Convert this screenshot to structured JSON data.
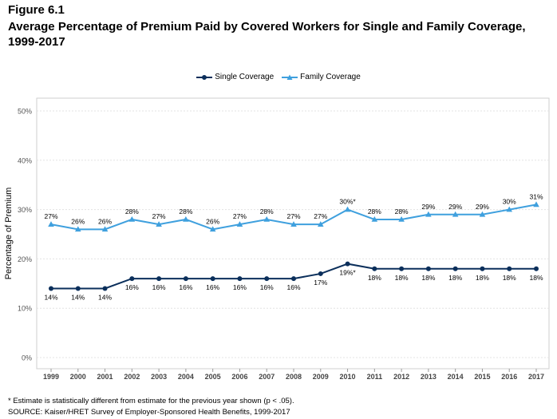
{
  "header": {
    "figure_label": "Figure 6.1",
    "title": "Average Percentage of Premium Paid by Covered Workers for Single and Family Coverage, 1999-2017"
  },
  "chart_data": {
    "type": "line",
    "x": [
      "1999",
      "2000",
      "2001",
      "2002",
      "2003",
      "2004",
      "2005",
      "2006",
      "2007",
      "2008",
      "2009",
      "2010",
      "2011",
      "2012",
      "2013",
      "2014",
      "2015",
      "2016",
      "2017"
    ],
    "ylabel": "Percentage of Premium",
    "ylim": [
      0,
      50
    ],
    "yticks": [
      0,
      10,
      20,
      30,
      40,
      50
    ],
    "ytick_labels": [
      "0%",
      "10%",
      "20%",
      "30%",
      "40%",
      "50%"
    ],
    "grid": "horizontal",
    "legend": "top-center",
    "series": [
      {
        "name": "Single Coverage",
        "color": "#0b2f5b",
        "marker": "circle",
        "values": [
          14,
          14,
          14,
          16,
          16,
          16,
          16,
          16,
          16,
          16,
          17,
          19,
          18,
          18,
          18,
          18,
          18,
          18,
          18
        ],
        "labels": [
          "14%",
          "14%",
          "14%",
          "16%",
          "16%",
          "16%",
          "16%",
          "16%",
          "16%",
          "16%",
          "17%",
          "19%*",
          "18%",
          "18%",
          "18%",
          "18%",
          "18%",
          "18%",
          "18%"
        ],
        "label_position": "below"
      },
      {
        "name": "Family Coverage",
        "color": "#3fa0de",
        "marker": "triangle",
        "values": [
          27,
          26,
          26,
          28,
          27,
          28,
          26,
          27,
          28,
          27,
          27,
          30,
          28,
          28,
          29,
          29,
          29,
          30,
          31
        ],
        "labels": [
          "27%",
          "26%",
          "26%",
          "28%",
          "27%",
          "28%",
          "26%",
          "27%",
          "28%",
          "27%",
          "27%",
          "30%*",
          "28%",
          "28%",
          "29%",
          "29%",
          "29%",
          "30%",
          "31%"
        ],
        "label_position": "above"
      }
    ]
  },
  "footnotes": {
    "note": "* Estimate is statistically different from estimate for the previous year shown (p < .05).",
    "source": "SOURCE: Kaiser/HRET Survey of Employer-Sponsored Health Benefits, 1999-2017"
  }
}
